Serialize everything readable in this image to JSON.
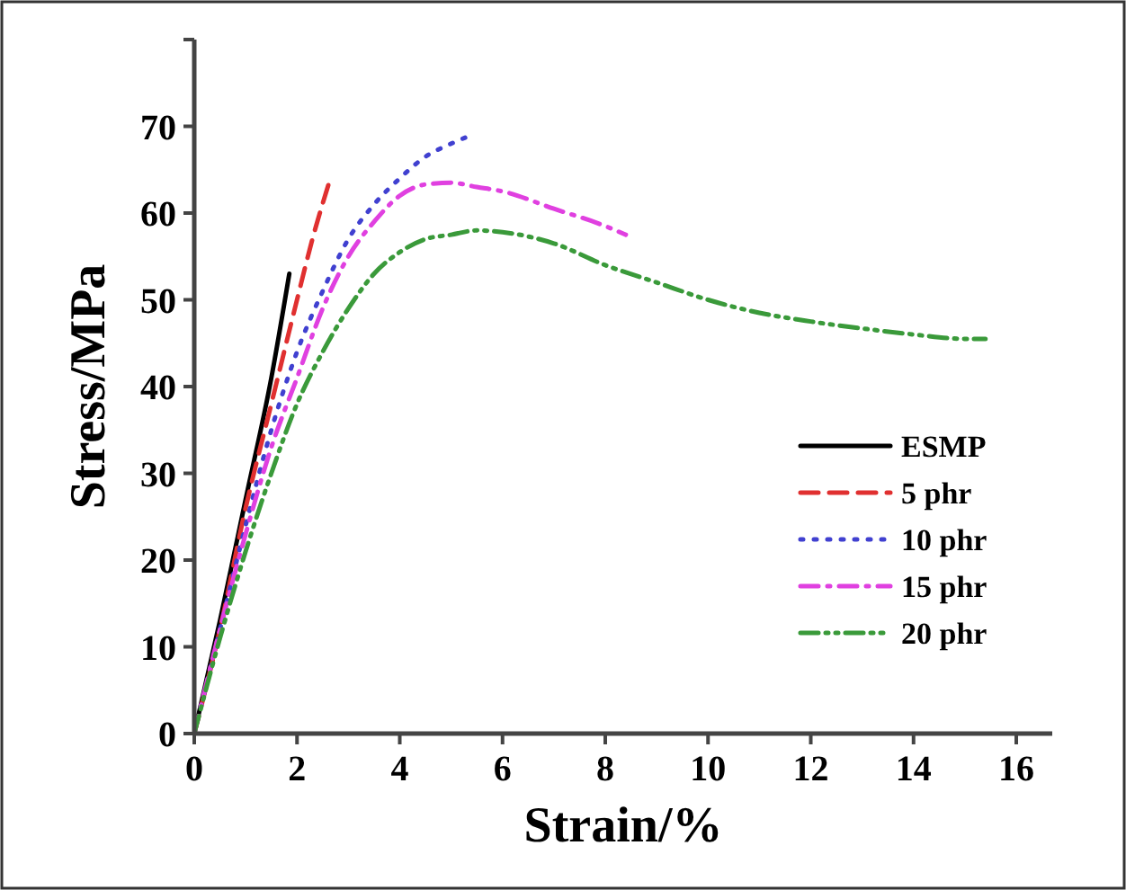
{
  "chart_data": {
    "type": "line",
    "xlabel": "Strain/%",
    "ylabel": "Stress/MPa",
    "xlim": [
      0,
      16.7
    ],
    "xticks": [
      0,
      2,
      4,
      6,
      8,
      10,
      12,
      14,
      16
    ],
    "ylim": [
      0,
      80
    ],
    "yticks": [
      0,
      10,
      20,
      30,
      40,
      50,
      60,
      70,
      {
        "value": 80,
        "label": null
      }
    ],
    "grid": false,
    "legend": "bottom right",
    "marker": "none",
    "series": [
      {
        "name": "ESMP",
        "color": "#000000",
        "line_style": "solid",
        "x": [
          0,
          0.5,
          1,
          1.5,
          1.85
        ],
        "values": [
          0,
          13,
          27,
          41,
          53
        ]
      },
      {
        "name": "5 phr",
        "color": "#e03030",
        "line_style": "dashed",
        "x": [
          0,
          0.5,
          1,
          1.5,
          2,
          2.3,
          2.65
        ],
        "values": [
          0,
          12,
          26,
          38,
          50,
          57,
          64
        ]
      },
      {
        "name": "10 phr",
        "color": "#4040d0",
        "line_style": "dotted",
        "x": [
          0,
          0.5,
          1,
          1.5,
          2,
          2.5,
          3,
          3.5,
          4,
          4.5,
          5,
          5.4
        ],
        "values": [
          0,
          12,
          24,
          35,
          44,
          51,
          57,
          61,
          64,
          66.5,
          68,
          69
        ]
      },
      {
        "name": "15 phr",
        "color": "#e040e0",
        "line_style": "dashdot",
        "x": [
          0,
          0.5,
          1,
          1.5,
          2,
          2.5,
          3,
          3.5,
          4,
          4.5,
          5,
          5.5,
          6,
          7,
          8,
          8.4
        ],
        "values": [
          0,
          12,
          23,
          33,
          41,
          49,
          55,
          59,
          62,
          63.3,
          63.5,
          63,
          62.5,
          60.5,
          58.5,
          57.5
        ]
      },
      {
        "name": "20 phr",
        "color": "#3a9a3a",
        "line_style": "dashdotdot",
        "x": [
          0,
          0.5,
          1,
          1.5,
          2,
          2.5,
          3,
          3.5,
          4,
          4.5,
          5,
          5.5,
          6,
          7,
          8,
          9,
          10,
          11,
          12,
          13,
          14,
          15,
          15.4
        ],
        "values": [
          0,
          11,
          21,
          30,
          38,
          44,
          49,
          53,
          55.5,
          57,
          57.5,
          58,
          57.8,
          56.5,
          54,
          52,
          50,
          48.5,
          47.5,
          46.7,
          46,
          45.5,
          45.5
        ]
      }
    ]
  }
}
